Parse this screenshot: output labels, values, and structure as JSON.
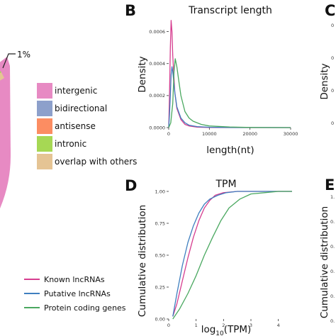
{
  "panels": {
    "b_letter": "B",
    "c_letter": "C",
    "d_letter": "D",
    "e_letter": "E"
  },
  "pie": {
    "callout_label": "1%",
    "legend": [
      {
        "label": "intergenic",
        "color": "#e78ac3"
      },
      {
        "label": "bidirectional",
        "color": "#8da0cb"
      },
      {
        "label": "antisense",
        "color": "#fc8d62"
      },
      {
        "label": "intronic",
        "color": "#a6d854"
      },
      {
        "label": "overlap with others",
        "color": "#e5c494"
      }
    ]
  },
  "series_legend": [
    {
      "label": "Known lncRNAs",
      "color": "#d63d8f"
    },
    {
      "label": "Putative lncRNAs",
      "color": "#3f7fbf"
    },
    {
      "label": "Protein coding genes",
      "color": "#4aa860"
    }
  ],
  "cropped_axis": {
    "c_ylabel": "Density",
    "e_ylabel": "Cumulative distribution",
    "e_ticks": [
      "1.",
      "0.",
      "0.",
      "0.",
      "0.",
      "0."
    ]
  },
  "chart_data": [
    {
      "type": "line",
      "title": "Transcript length",
      "xlabel": "length(nt)",
      "ylabel": "Density",
      "xlim": [
        0,
        30000
      ],
      "ylim": [
        0,
        0.0007
      ],
      "x_ticks": [
        "0",
        "10000",
        "20000",
        "30000"
      ],
      "x_tick_values": [
        0,
        10000,
        20000,
        30000
      ],
      "y_ticks": [
        "0.0000",
        "0.0002",
        "0.0004",
        "0.0006"
      ],
      "y_tick_values": [
        0,
        0.0002,
        0.0004,
        0.0006
      ],
      "series": [
        {
          "name": "Known lncRNAs",
          "color": "#d63d8f",
          "x": [
            0,
            200,
            400,
            600,
            800,
            1000,
            1500,
            2000,
            3000,
            4000,
            5000,
            7000,
            10000,
            15000,
            30000
          ],
          "y": [
            0,
            0.0002,
            0.0005,
            0.00067,
            0.0006,
            0.00045,
            0.00022,
            0.00012,
            5e-05,
            2e-05,
            1e-05,
            3e-06,
            1e-06,
            0,
            0
          ]
        },
        {
          "name": "Putative lncRNAs",
          "color": "#3f7fbf",
          "x": [
            0,
            200,
            400,
            600,
            800,
            1000,
            1500,
            2000,
            3000,
            4000,
            5000,
            7000,
            10000,
            15000,
            30000
          ],
          "y": [
            0,
            8e-05,
            0.0002,
            0.00033,
            0.00038,
            0.00035,
            0.00022,
            0.00013,
            6e-05,
            3e-05,
            1.5e-05,
            6e-06,
            2e-06,
            1e-06,
            0
          ]
        },
        {
          "name": "Protein coding genes",
          "color": "#4aa860",
          "x": [
            0,
            500,
            1000,
            1300,
            1600,
            2000,
            2500,
            3000,
            4000,
            5000,
            6000,
            8000,
            10000,
            15000,
            20000,
            30000
          ],
          "y": [
            0,
            3e-05,
            0.00015,
            0.00035,
            0.00043,
            0.00038,
            0.00029,
            0.0002,
            0.0001,
            6e-05,
            4e-05,
            2e-05,
            1e-05,
            4e-06,
            1e-06,
            0
          ]
        }
      ]
    },
    {
      "type": "line",
      "title": "TPM",
      "xlabel_prefix": "log",
      "xlabel_sub": "10",
      "xlabel_suffix": "(TPM)",
      "ylabel": "Cumulative distribution",
      "xlim": [
        0,
        4.5
      ],
      "ylim": [
        0,
        1.0
      ],
      "x_ticks": [
        "0",
        "1",
        "2",
        "3",
        "4"
      ],
      "x_tick_values": [
        0,
        1,
        2,
        3,
        4
      ],
      "y_ticks": [
        "0.00",
        "0.25",
        "0.50",
        "0.75",
        "1.00"
      ],
      "y_tick_values": [
        0,
        0.25,
        0.5,
        0.75,
        1.0
      ],
      "series": [
        {
          "name": "Known lncRNAs",
          "color": "#d63d8f",
          "x": [
            0.15,
            0.3,
            0.5,
            0.7,
            0.9,
            1.1,
            1.3,
            1.5,
            1.7,
            2.0,
            2.5,
            3.0,
            4.5
          ],
          "y": [
            0.02,
            0.12,
            0.3,
            0.48,
            0.64,
            0.77,
            0.87,
            0.93,
            0.97,
            0.99,
            1.0,
            1.0,
            1.0
          ]
        },
        {
          "name": "Putative lncRNAs",
          "color": "#3f7fbf",
          "x": [
            0.15,
            0.3,
            0.5,
            0.7,
            0.9,
            1.1,
            1.3,
            1.5,
            1.8,
            2.1,
            2.5,
            3.0,
            4.5
          ],
          "y": [
            0.02,
            0.2,
            0.42,
            0.6,
            0.73,
            0.83,
            0.9,
            0.94,
            0.97,
            0.99,
            1.0,
            1.0,
            1.0
          ]
        },
        {
          "name": "Protein coding genes",
          "color": "#4aa860",
          "x": [
            0.15,
            0.4,
            0.7,
            1.0,
            1.3,
            1.6,
            1.9,
            2.2,
            2.6,
            3.0,
            3.5,
            4.0,
            4.5
          ],
          "y": [
            0.0,
            0.08,
            0.2,
            0.34,
            0.5,
            0.64,
            0.77,
            0.87,
            0.94,
            0.98,
            0.99,
            1.0,
            1.0
          ]
        }
      ]
    }
  ]
}
